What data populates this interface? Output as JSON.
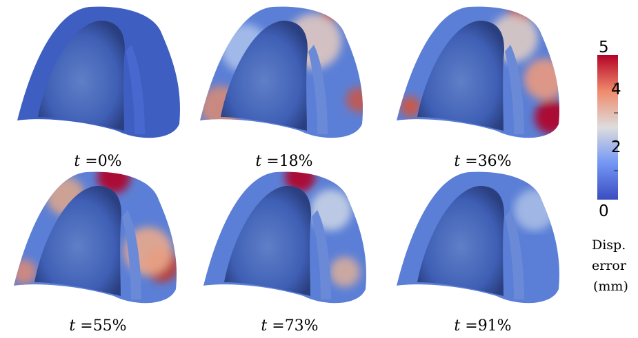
{
  "panels": [
    {
      "label_prefix": "t =",
      "label_value": "0%"
    },
    {
      "label_prefix": "t =",
      "label_value": "18%"
    },
    {
      "label_prefix": "t =",
      "label_value": "36%"
    },
    {
      "label_prefix": "t =",
      "label_value": "55%"
    },
    {
      "label_prefix": "t =",
      "label_value": "73%"
    },
    {
      "label_prefix": "t =",
      "label_value": "91%"
    }
  ],
  "colorbar": {
    "max_label": "5",
    "tick_4": "4",
    "tick_2": "2",
    "min_label": "0",
    "title_line1": "Disp.",
    "title_line2": "error",
    "title_line3": "(mm)",
    "colors": {
      "low": "#3b4cc0",
      "mid": "#dddddd",
      "high": "#b40426"
    }
  }
}
